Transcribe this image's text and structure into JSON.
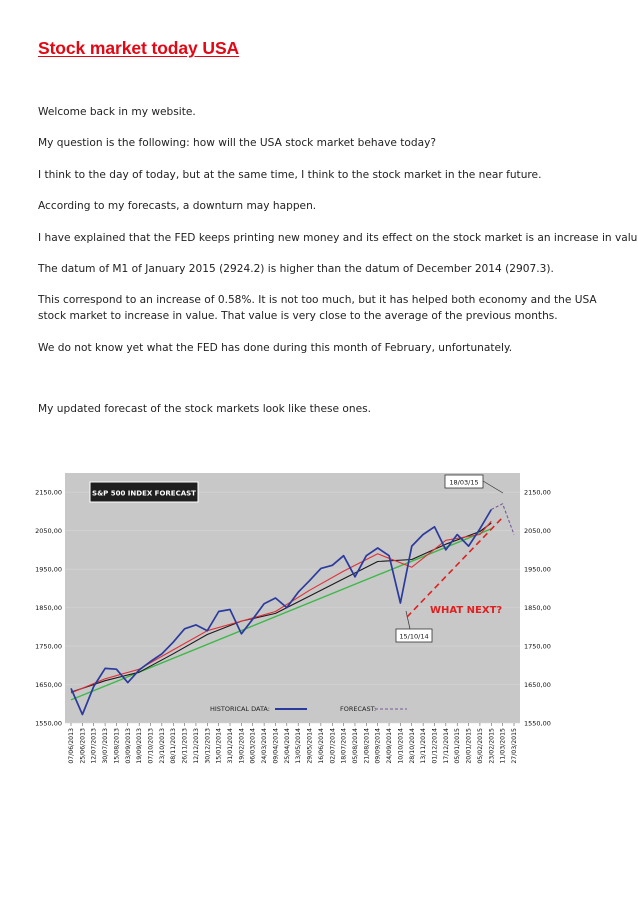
{
  "document": {
    "title": "Stock market today USA",
    "paragraphs": [
      "Welcome back in my website.",
      "My question is the following: how will the USA stock market behave today?",
      "I think to the day of today, but at the same time, I think to the stock market in the near future.",
      "According to my forecasts, a downturn may happen.",
      "I have explained that the FED keeps printing new money and its effect on the stock market is an increase in value.",
      "The datum of M1 of January 2015 (2924.2) is higher than the datum of December 2014 (2907.3).",
      "This correspond to an increase of 0.58%. It is not too much, but it has helped both economy and the USA stock market to increase in value. That value is very close to the average of the previous months.",
      "We do not know yet what the FED has done during this month of February, unfortunately.",
      "My updated forecast of the stock markets look like these ones."
    ]
  },
  "chart_data": {
    "type": "line",
    "title": "S&P 500 INDEX FORECAST",
    "ylim": [
      1550,
      2200
    ],
    "yticks": [
      "1550,00",
      "1650,00",
      "1750,00",
      "1850,00",
      "1950,00",
      "2050,00",
      "2150,00"
    ],
    "xticks": [
      "07/06/2013",
      "25/06/2013",
      "12/07/2013",
      "30/07/2013",
      "15/08/2013",
      "03/09/2013",
      "19/09/2013",
      "07/10/2013",
      "23/10/2013",
      "08/11/2013",
      "26/11/2013",
      "12/12/2013",
      "30/12/2013",
      "15/01/2014",
      "31/01/2014",
      "19/02/2014",
      "06/03/2014",
      "24/03/2014",
      "09/04/2014",
      "25/04/2014",
      "13/05/2014",
      "29/05/2014",
      "16/06/2014",
      "02/07/2014",
      "18/07/2014",
      "05/08/2014",
      "21/08/2014",
      "09/09/2014",
      "24/09/2014",
      "10/10/2014",
      "28/10/2014",
      "13/11/2014",
      "01/12/2014",
      "17/12/2014",
      "05/01/2015",
      "20/01/2015",
      "05/02/2015",
      "23/02/2015",
      "11/03/2015",
      "27/03/2015"
    ],
    "annotations": [
      {
        "text": "18/03/15"
      },
      {
        "text": "15/10/14"
      },
      {
        "text": "WHAT NEXT?"
      }
    ],
    "legend": [
      {
        "label": "HISTORICAL DATA:"
      },
      {
        "label": "FORECAST:"
      }
    ],
    "series": [
      {
        "role": "historical",
        "color": "#2b3a9e",
        "x": [
          0,
          1,
          2,
          3,
          4,
          5,
          6,
          7,
          8,
          9,
          10,
          11,
          12,
          13,
          14,
          15,
          16,
          17,
          18,
          19,
          20,
          21,
          22,
          23,
          24,
          25,
          26,
          27,
          28,
          29,
          30,
          31,
          32,
          33,
          34,
          35,
          36,
          37
        ],
        "values": [
          1640,
          1572,
          1645,
          1692,
          1690,
          1655,
          1688,
          1710,
          1730,
          1760,
          1795,
          1805,
          1790,
          1840,
          1845,
          1782,
          1820,
          1860,
          1875,
          1850,
          1890,
          1920,
          1952,
          1960,
          1985,
          1930,
          1985,
          2005,
          1985,
          1862,
          2010,
          2040,
          2060,
          2000,
          2040,
          2010,
          2055,
          2105
        ]
      },
      {
        "role": "moving-average-short",
        "color": "#e0303a",
        "x": [
          0,
          3,
          6,
          9,
          12,
          15,
          18,
          21,
          24,
          27,
          30,
          33,
          36,
          37
        ],
        "values": [
          1628,
          1665,
          1690,
          1740,
          1790,
          1815,
          1840,
          1895,
          1945,
          1990,
          1955,
          2025,
          2040,
          2075
        ]
      },
      {
        "role": "moving-average-long",
        "color": "#1a1a1a",
        "x": [
          0,
          3,
          6,
          9,
          12,
          15,
          18,
          21,
          24,
          27,
          30,
          33,
          36,
          37
        ],
        "values": [
          1630,
          1660,
          1682,
          1730,
          1780,
          1815,
          1835,
          1880,
          1925,
          1970,
          1975,
          2015,
          2048,
          2070
        ]
      },
      {
        "role": "trend",
        "color": "#3db849",
        "x": [
          0,
          37
        ],
        "values": [
          1610,
          2055
        ]
      },
      {
        "role": "forecast",
        "color": "#7a5a9a",
        "x": [
          37,
          38,
          39
        ],
        "values": [
          2105,
          2120,
          2040
        ]
      }
    ]
  }
}
